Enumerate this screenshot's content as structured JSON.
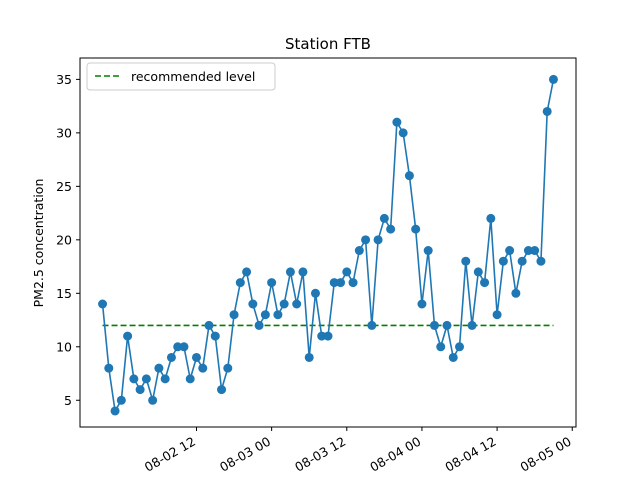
{
  "chart_data": {
    "type": "line",
    "title": "Station FTB",
    "xlabel": "",
    "ylabel": "PM2.5 concentration",
    "x_start": "2024-08-01 21:00",
    "x_step_hours": 1,
    "x_ticks": [
      {
        "value": "2024-08-02 12:00",
        "label": "08-02 12"
      },
      {
        "value": "2024-08-03 00:00",
        "label": "08-03 00"
      },
      {
        "value": "2024-08-03 12:00",
        "label": "08-03 12"
      },
      {
        "value": "2024-08-04 00:00",
        "label": "08-04 00"
      },
      {
        "value": "2024-08-04 12:00",
        "label": "08-04 12"
      },
      {
        "value": "2024-08-05 00:00",
        "label": "08-05 00"
      }
    ],
    "y_ticks": [
      5,
      10,
      15,
      20,
      25,
      30,
      35
    ],
    "ylim": [
      2.5,
      37
    ],
    "series": [
      {
        "name": "",
        "color": "#1f77b4",
        "marker": "circle",
        "values": [
          14,
          8,
          4,
          5,
          11,
          7,
          6,
          7,
          5,
          8,
          7,
          9,
          10,
          10,
          7,
          9,
          8,
          12,
          11,
          6,
          8,
          13,
          16,
          17,
          14,
          12,
          13,
          16,
          13,
          14,
          17,
          14,
          17,
          9,
          15,
          11,
          11,
          16,
          16,
          17,
          16,
          19,
          20,
          12,
          20,
          22,
          21,
          31,
          30,
          26,
          21,
          14,
          19,
          12,
          10,
          12,
          9,
          10,
          18,
          12,
          17,
          16,
          22,
          13,
          18,
          19,
          15,
          18,
          19,
          19,
          18,
          32,
          35
        ]
      }
    ],
    "reference_line": {
      "name": "recommended level",
      "value": 12,
      "color": "#008000",
      "style": "dashed"
    },
    "legend": {
      "position": "top-left",
      "entries": [
        "recommended level"
      ]
    },
    "grid": false
  }
}
